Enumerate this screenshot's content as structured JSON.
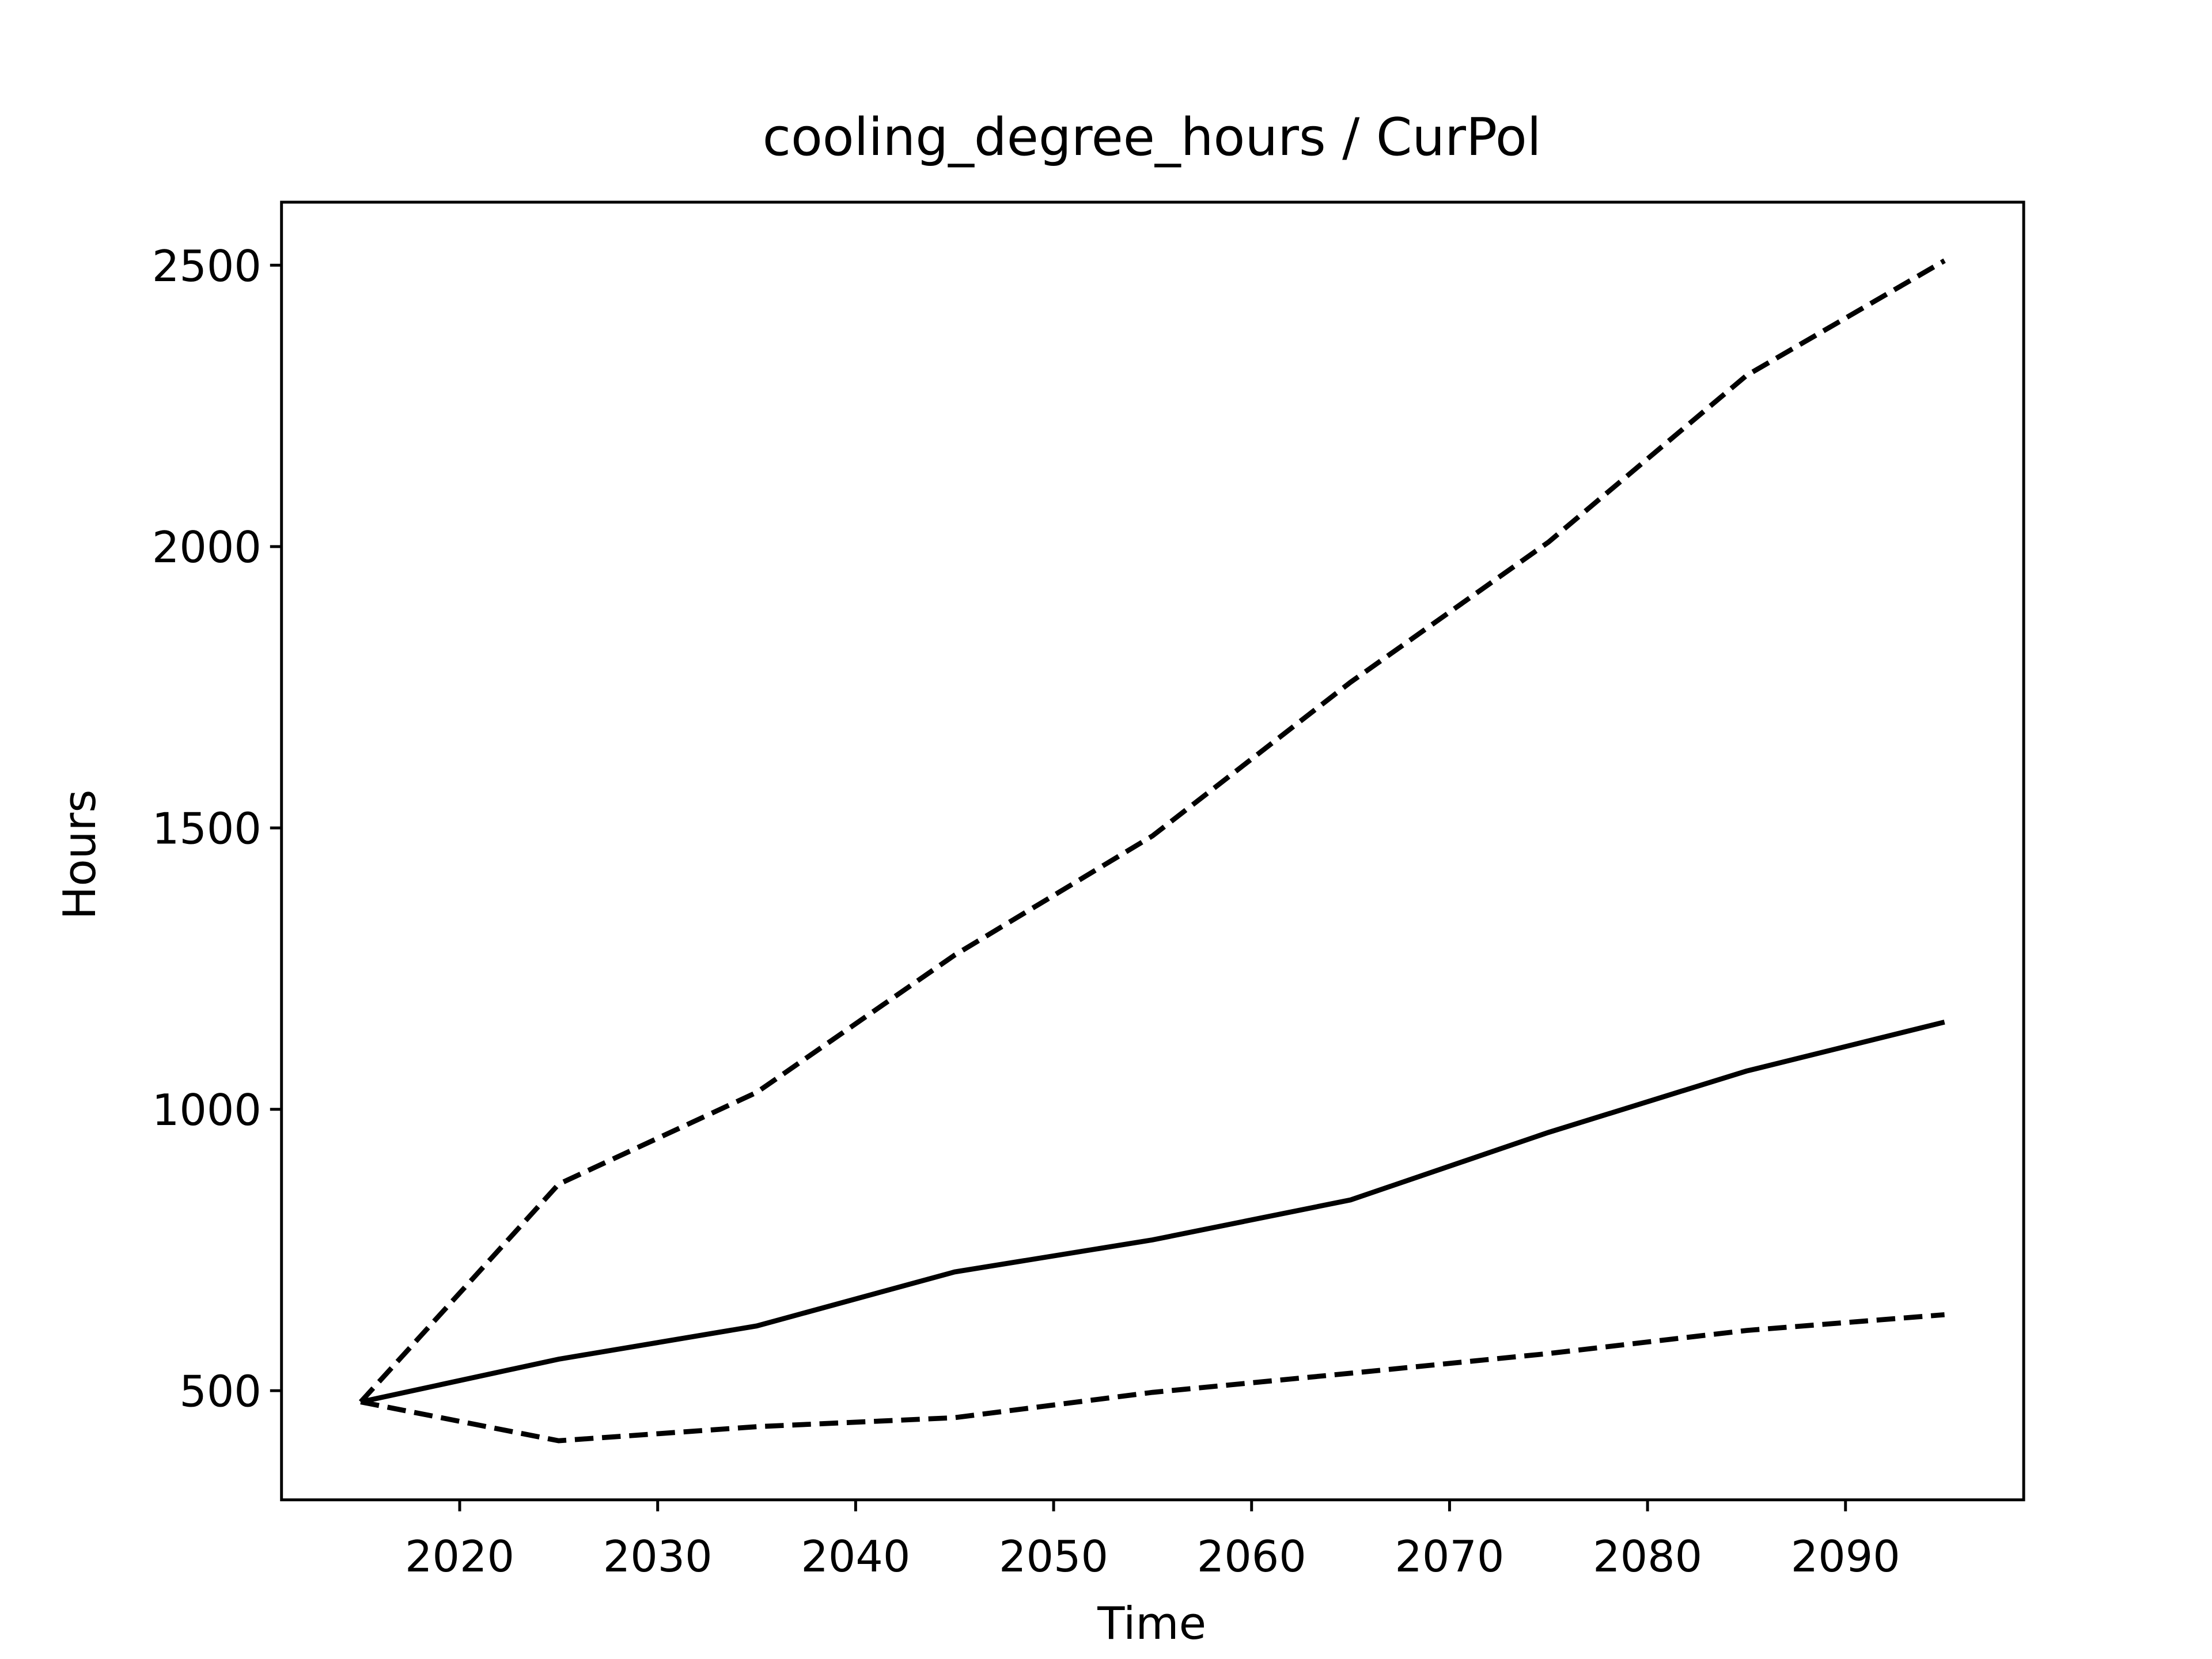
{
  "chart_data": {
    "type": "line",
    "title": "cooling_degree_hours / CurPol",
    "x_label": "Time",
    "y_label": "Hours",
    "x": [
      2015,
      2025,
      2035,
      2045,
      2055,
      2065,
      2075,
      2085,
      2095
    ],
    "series": [
      {
        "color": "#000000",
        "dashed": false,
        "values": [
          480,
          556,
          615,
          711,
          768,
          839,
          959,
          1068,
          1155
        ]
      },
      {
        "color": "#000000",
        "dashed": true,
        "values": [
          480,
          867,
          1030,
          1274,
          1486,
          1759,
          2008,
          2304,
          2508
        ]
      },
      {
        "color": "#000000",
        "dashed": true,
        "values": [
          480,
          411,
          436,
          452,
          497,
          531,
          566,
          607,
          635
        ]
      }
    ],
    "xlim": [
      2011,
      2099
    ],
    "xticks": [
      2020,
      2030,
      2040,
      2050,
      2060,
      2070,
      2080,
      2090
    ],
    "ylim": [
      306,
      2612
    ],
    "yticks": [
      500,
      1000,
      1500,
      2000,
      2500
    ],
    "grid": false
  }
}
